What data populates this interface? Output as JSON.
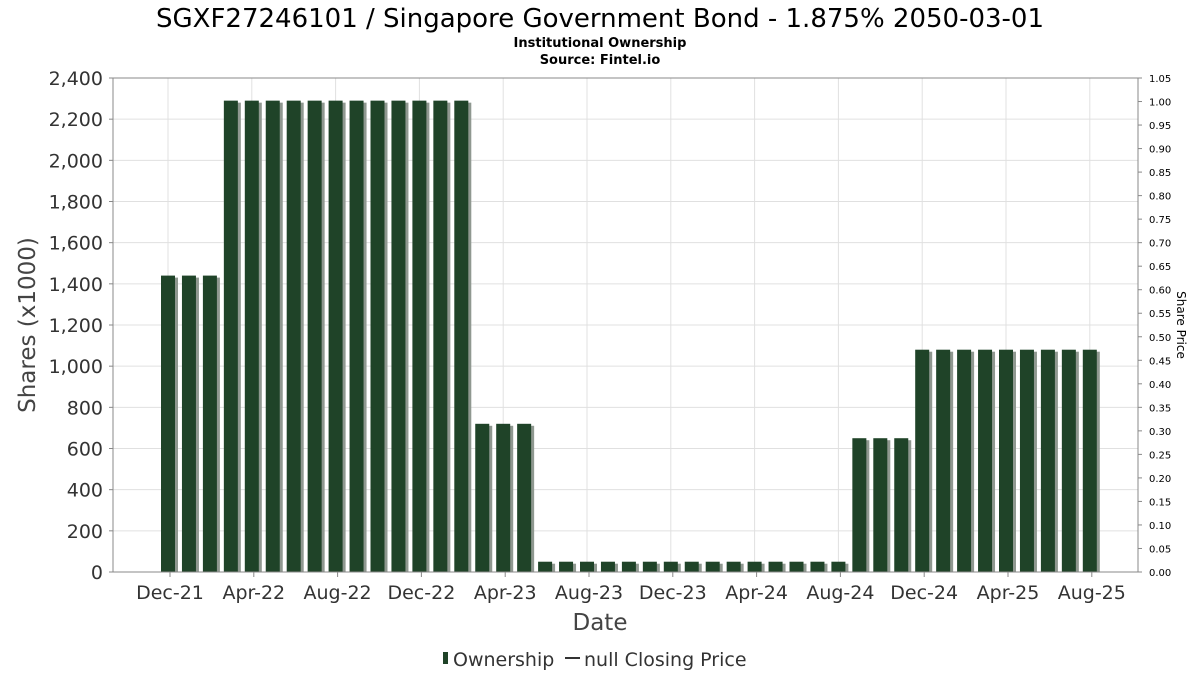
{
  "chart_data": {
    "type": "bar",
    "title": "SGXF27246101 / Singapore Government Bond - 1.875% 2050-03-01",
    "subtitle": "Institutional Ownership",
    "source": "Source: Fintel.io",
    "xlabel": "Date",
    "ylabel": "Shares (x1000)",
    "y2label": "Share Price",
    "ylim": [
      0,
      2400
    ],
    "y2lim": [
      0,
      1.05
    ],
    "yticks": [
      "0",
      "200",
      "400",
      "600",
      "800",
      "1,000",
      "1,200",
      "1,400",
      "1,600",
      "1,800",
      "2,000",
      "2,200",
      "2,400"
    ],
    "y2ticks": [
      "0.00",
      "0.05",
      "0.10",
      "0.15",
      "0.20",
      "0.25",
      "0.30",
      "0.35",
      "0.40",
      "0.45",
      "0.50",
      "0.55",
      "0.60",
      "0.65",
      "0.70",
      "0.75",
      "0.80",
      "0.85",
      "0.90",
      "0.95",
      "1.00",
      "1.05"
    ],
    "xticks": [
      {
        "label": "Dec-21",
        "month_index": 0
      },
      {
        "label": "Apr-22",
        "month_index": 4
      },
      {
        "label": "Aug-22",
        "month_index": 8
      },
      {
        "label": "Dec-22",
        "month_index": 12
      },
      {
        "label": "Apr-23",
        "month_index": 16
      },
      {
        "label": "Aug-23",
        "month_index": 20
      },
      {
        "label": "Dec-23",
        "month_index": 24
      },
      {
        "label": "Apr-24",
        "month_index": 28
      },
      {
        "label": "Aug-24",
        "month_index": 32
      },
      {
        "label": "Dec-24",
        "month_index": 36
      },
      {
        "label": "Apr-25",
        "month_index": 40
      },
      {
        "label": "Aug-25",
        "month_index": 44
      }
    ],
    "values": [
      1440,
      1440,
      1440,
      2290,
      2290,
      2290,
      2290,
      2290,
      2290,
      2290,
      2290,
      2290,
      2290,
      2290,
      2290,
      720,
      720,
      720,
      50,
      50,
      50,
      50,
      50,
      50,
      50,
      50,
      50,
      50,
      50,
      50,
      50,
      50,
      50,
      650,
      650,
      650,
      1080,
      1080,
      1080,
      1080,
      1080,
      1080,
      1080,
      1080,
      1080
    ],
    "grid": true,
    "legend_position": "bottom",
    "legend": [
      {
        "name": "Ownership",
        "marker": "bar"
      },
      {
        "name": "null Closing Price",
        "marker": "line"
      }
    ],
    "colors": {
      "bar": "#1f4328",
      "bar_shadow": "#8f9890",
      "grid": "#e0e0e0",
      "axis": "#888888"
    }
  }
}
